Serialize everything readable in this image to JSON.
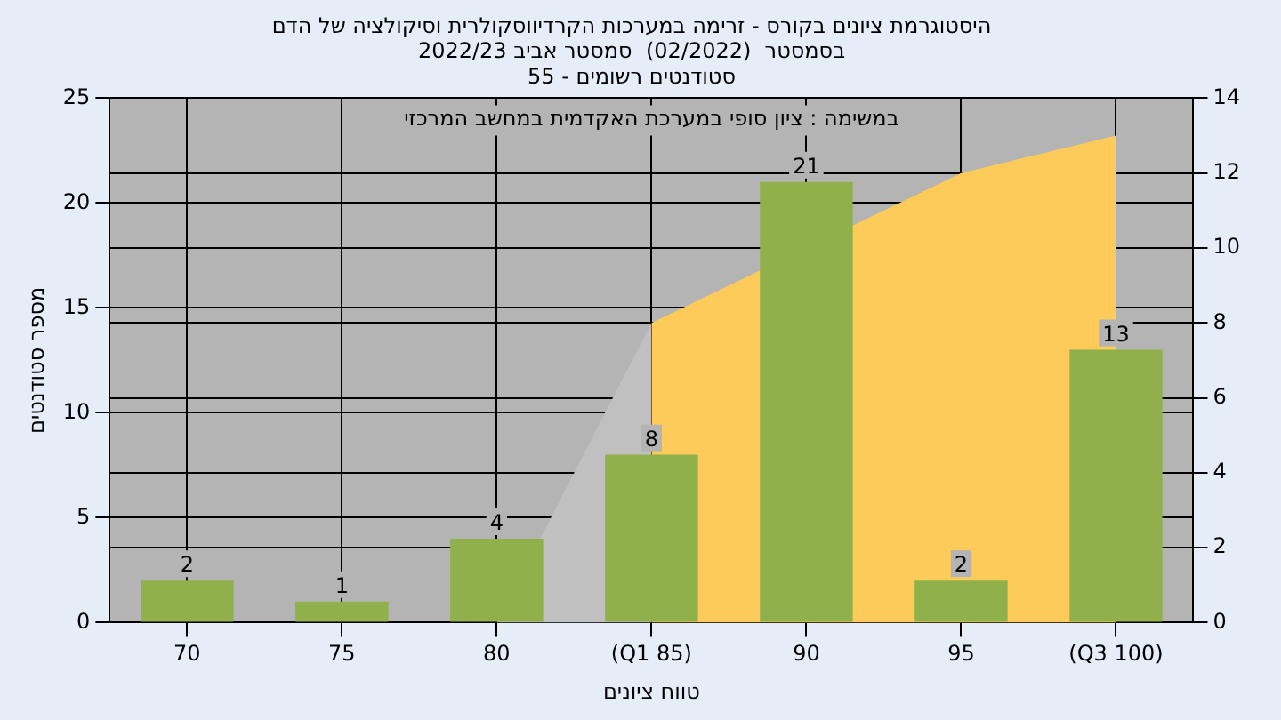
{
  "chart_data": {
    "type": "bar",
    "title": "היסטוגרמת ציונים בקורס - זרימה במערכות הקרדיווסקולרית וסיקולציה של הדם\nבסמסטר  (02/2022)  סמסטר אביב 2022/23",
    "subtitle": "סטודנטים רשומים - 55",
    "annotations": [
      "במשימה : ציון סופי במערכת האקדמית במחשב המרכזי"
    ],
    "xlabel": "טווח ציונים",
    "ylabel": "מספר סטודנטים",
    "categories": [
      "70",
      "75",
      "80",
      "(Q1 85)",
      "90",
      "95",
      "(Q3 100)"
    ],
    "series": [
      {
        "color": "#8fb04a",
        "values": [
          2,
          1,
          4,
          8,
          21,
          2,
          13
        ],
        "value_labels": [
          "2",
          "1",
          "4",
          "8",
          "21",
          "2",
          "13"
        ]
      },
      {
        "type": "area",
        "axis": "y2",
        "color": "#c0c0c0",
        "values": [
          null,
          null,
          0,
          8,
          null,
          null,
          null
        ]
      },
      {
        "type": "area",
        "axis": "y2",
        "color": "#fdcb5a",
        "values": [
          null,
          null,
          null,
          8,
          null,
          12,
          13
        ]
      }
    ],
    "ylim": [
      0,
      25
    ],
    "yticks": [
      0,
      5,
      10,
      15,
      20,
      25
    ],
    "y2lim": [
      0,
      14
    ],
    "y2ticks": [
      0,
      2,
      4,
      6,
      8,
      10,
      12,
      14
    ],
    "grid": true,
    "legend": false
  }
}
